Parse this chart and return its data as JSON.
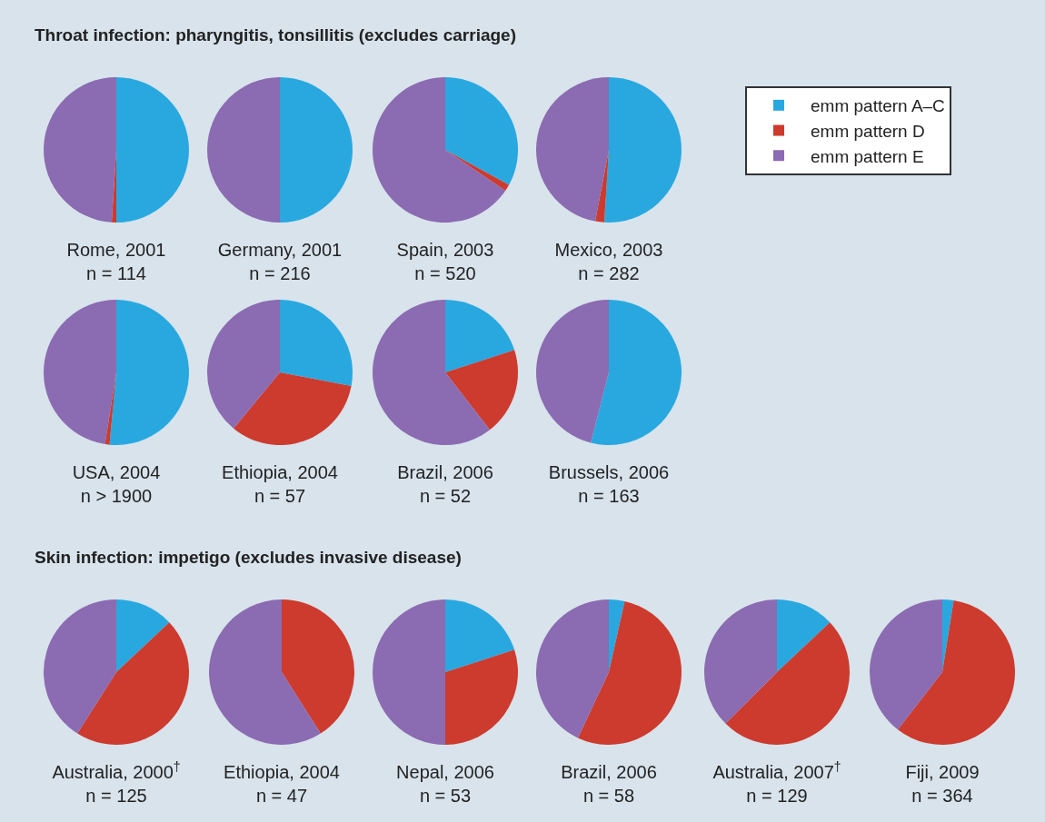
{
  "chart_data": [
    {
      "type": "pie",
      "title": "Rome, 2001",
      "subtitle": "n = 114",
      "annotations": [
        "Throat infection: pharyngitis, tonsillitis (excludes carriage)"
      ],
      "values": [
        50,
        1,
        49
      ],
      "colors": [
        "#29a8e0",
        "#cc3b2e",
        "#8b6bb1"
      ]
    },
    {
      "type": "pie",
      "title": "Germany, 2001",
      "subtitle": "n = 216",
      "values": [
        50,
        0,
        50
      ],
      "colors": [
        "#29a8e0",
        "#cc3b2e",
        "#8b6bb1"
      ]
    },
    {
      "type": "pie",
      "title": "Spain, 2003",
      "subtitle": "n = 520",
      "values": [
        33,
        1.5,
        65.5
      ],
      "colors": [
        "#29a8e0",
        "#cc3b2e",
        "#8b6bb1"
      ]
    },
    {
      "type": "pie",
      "title": "Mexico, 2003",
      "subtitle": "n = 282",
      "legend": "right",
      "categories": [
        "emm pattern A–C",
        "emm pattern D",
        "emm pattern E"
      ],
      "values": [
        51,
        2,
        47
      ],
      "colors": [
        "#29a8e0",
        "#cc3b2e",
        "#8b6bb1"
      ]
    },
    {
      "type": "pie",
      "title": "USA, 2004",
      "subtitle": "n > 1900",
      "values": [
        51.5,
        1,
        47.5
      ],
      "colors": [
        "#29a8e0",
        "#cc3b2e",
        "#8b6bb1"
      ]
    },
    {
      "type": "pie",
      "title": "Ethiopia, 2004",
      "subtitle": "n = 57",
      "values": [
        28,
        33,
        39
      ],
      "colors": [
        "#29a8e0",
        "#cc3b2e",
        "#8b6bb1"
      ]
    },
    {
      "type": "pie",
      "title": "Brazil, 2006",
      "subtitle": "n = 52",
      "values": [
        20,
        19.5,
        60.5
      ],
      "colors": [
        "#29a8e0",
        "#cc3b2e",
        "#8b6bb1"
      ]
    },
    {
      "type": "pie",
      "title": "Brussels, 2006",
      "subtitle": "n = 163",
      "values": [
        54,
        0,
        46
      ],
      "colors": [
        "#29a8e0",
        "#cc3b2e",
        "#8b6bb1"
      ]
    },
    {
      "type": "pie",
      "title": "Australia, 2000$^{†}$",
      "subtitle": "n = 125",
      "annotations": [
        "Skin infection: impetigo (excludes invasive disease)"
      ],
      "values": [
        13,
        46,
        41
      ],
      "colors": [
        "#29a8e0",
        "#cc3b2e",
        "#8b6bb1"
      ]
    },
    {
      "type": "pie",
      "title": "Ethiopia, 2004",
      "subtitle": "n = 47",
      "values": [
        0,
        41,
        59
      ],
      "colors": [
        "#29a8e0",
        "#cc3b2e",
        "#8b6bb1"
      ]
    },
    {
      "type": "pie",
      "title": "Nepal, 2006",
      "subtitle": "n = 53",
      "values": [
        20,
        30,
        50
      ],
      "colors": [
        "#29a8e0",
        "#cc3b2e",
        "#8b6bb1"
      ]
    },
    {
      "type": "pie",
      "title": "Brazil, 2006",
      "subtitle": "n = 58",
      "values": [
        3.5,
        53.5,
        43
      ],
      "colors": [
        "#29a8e0",
        "#cc3b2e",
        "#8b6bb1"
      ]
    },
    {
      "type": "pie",
      "title": "Australia, 2007$^{†}$",
      "subtitle": "n = 129",
      "values": [
        13,
        49.5,
        37.5
      ],
      "colors": [
        "#29a8e0",
        "#cc3b2e",
        "#8b6bb1"
      ]
    },
    {
      "type": "pie",
      "title": "Fiji, 2009",
      "subtitle": "n = 364",
      "values": [
        2.5,
        58,
        39.5
      ],
      "colors": [
        "#29a8e0",
        "#cc3b2e",
        "#8b6bb1"
      ]
    }
  ]
}
